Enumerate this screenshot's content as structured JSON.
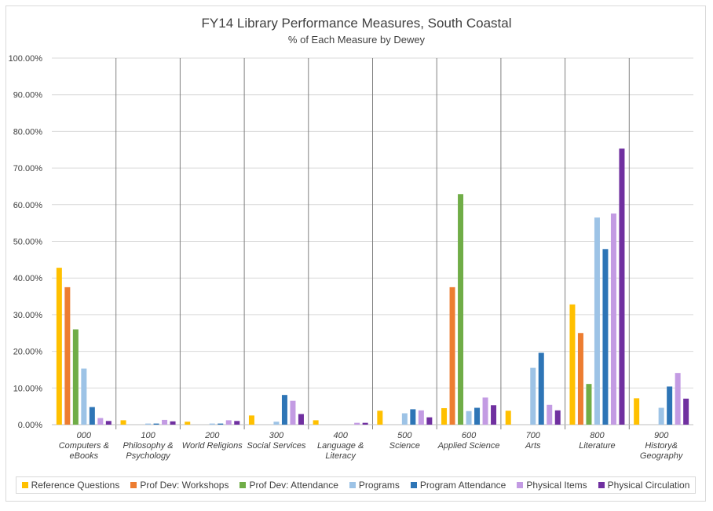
{
  "chart_data": {
    "type": "bar",
    "title": "FY14 Library Performance Measures, South Coastal",
    "subtitle": "% of Each Measure by Dewey",
    "xlabel": "",
    "ylabel": "",
    "ylim": [
      0,
      100
    ],
    "y_ticks": [
      "0.00%",
      "10.00%",
      "20.00%",
      "30.00%",
      "40.00%",
      "50.00%",
      "60.00%",
      "70.00%",
      "80.00%",
      "90.00%",
      "100.00%"
    ],
    "categories": [
      [
        "000",
        "Computers &",
        "eBooks"
      ],
      [
        "100",
        "Philosophy &",
        "Psychology"
      ],
      [
        "200",
        "World Religions"
      ],
      [
        "300",
        "Social Services"
      ],
      [
        "400",
        "Language &",
        "Literacy"
      ],
      [
        "500",
        "Science"
      ],
      [
        "600",
        "Applied Science"
      ],
      [
        "700",
        "Arts"
      ],
      [
        "800",
        "Literature"
      ],
      [
        "900",
        "History&",
        "Geography"
      ]
    ],
    "legend_position": "bottom",
    "series": [
      {
        "name": "Reference Questions",
        "color": "#FFC000",
        "values": [
          42.8,
          1.2,
          0.8,
          2.5,
          1.2,
          3.8,
          4.5,
          3.8,
          32.8,
          7.2
        ]
      },
      {
        "name": "Prof Dev: Workshops",
        "color": "#ED7D31",
        "values": [
          37.5,
          0,
          0,
          0,
          0,
          0,
          37.5,
          0,
          25.0,
          0
        ]
      },
      {
        "name": "Prof Dev: Attendance",
        "color": "#70AD47",
        "values": [
          26.0,
          0,
          0,
          0,
          0,
          0,
          62.9,
          0,
          11.1,
          0
        ]
      },
      {
        "name": "Programs",
        "color": "#9DC3E6",
        "values": [
          15.3,
          0.3,
          0.3,
          0.8,
          0,
          3.1,
          3.7,
          15.5,
          56.5,
          4.6
        ]
      },
      {
        "name": "Program Attendance",
        "color": "#2E75B6",
        "values": [
          4.8,
          0.3,
          0.3,
          8.1,
          0,
          4.2,
          4.6,
          19.6,
          47.9,
          10.4
        ]
      },
      {
        "name": "Physical Items",
        "color": "#C39BE3",
        "values": [
          1.8,
          1.3,
          1.2,
          6.5,
          0.5,
          3.9,
          7.4,
          5.4,
          57.6,
          14.1
        ]
      },
      {
        "name": "Physical Circulation",
        "color": "#7030A0",
        "values": [
          1.0,
          0.9,
          1.0,
          2.9,
          0.5,
          2.0,
          5.3,
          3.9,
          75.3,
          7.1
        ]
      }
    ]
  }
}
